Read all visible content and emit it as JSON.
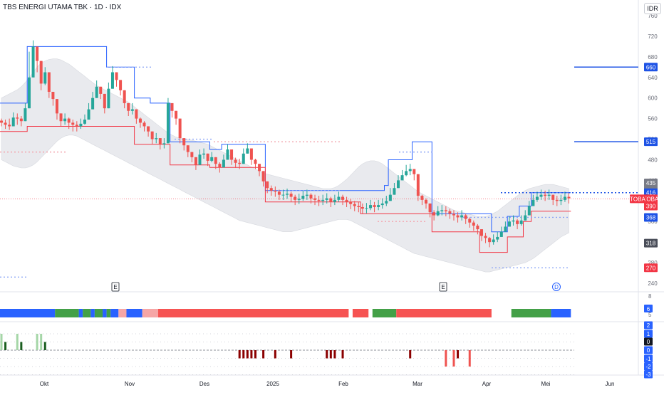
{
  "header": {
    "title": "TBS ENERGI UTAMA TBK · 1D · IDX",
    "currency": "IDR"
  },
  "colors": {
    "up": "#26a69a",
    "down": "#ef5350",
    "upper_band": "#2962ff",
    "lower_band": "#f23645",
    "cloud": "#e9eaee",
    "level_line": "#1e53e5",
    "last_price": "#f23645"
  },
  "chart_data": {
    "type": "candlestick",
    "symbol_tag": "TOBA",
    "price_axis": {
      "min": 240,
      "max": 760,
      "ticks": [
        760,
        720,
        680,
        640,
        600,
        560,
        520,
        480,
        440,
        400,
        360,
        320,
        280,
        240
      ]
    },
    "time_axis": {
      "labels": [
        "Okt",
        "Nov",
        "Des",
        "2025",
        "Feb",
        "Mar",
        "Apr",
        "Mei",
        "Jun"
      ]
    },
    "last_price": 404,
    "price_labels": [
      {
        "value": 660,
        "text": "660",
        "color": "#1e53e5"
      },
      {
        "value": 515,
        "text": "515",
        "color": "#1e53e5"
      },
      {
        "value": 435,
        "text": "435",
        "color": "#787b86"
      },
      {
        "value": 420,
        "text": "420",
        "color": "#787b86"
      },
      {
        "value": 416,
        "text": "416",
        "color": "#1e53e5"
      },
      {
        "value": 404,
        "text": "TOBA",
        "color": "#f23645"
      },
      {
        "value": 390,
        "text": "390",
        "color": "#f23645"
      },
      {
        "value": 368,
        "text": "368",
        "color": "#1e53e5"
      },
      {
        "value": 318,
        "text": "318",
        "color": "#4a4e59"
      },
      {
        "value": 270,
        "text": "270",
        "color": "#f23645"
      }
    ],
    "level_lines": [
      660,
      515
    ],
    "event_markers": [
      {
        "label": "E",
        "x": 162
      },
      {
        "label": "E",
        "x": 622
      },
      {
        "label": "D",
        "x": 781
      }
    ],
    "close": [
      552,
      548,
      545,
      562,
      560,
      555,
      580,
      640,
      700,
      672,
      628,
      650,
      612,
      598,
      570,
      555,
      560,
      552,
      548,
      545,
      550,
      558,
      578,
      600,
      622,
      608,
      580,
      618,
      650,
      635,
      615,
      590,
      575,
      578,
      560,
      552,
      545,
      535,
      520,
      522,
      510,
      512,
      590,
      575,
      560,
      522,
      508,
      495,
      485,
      470,
      490,
      492,
      478,
      485,
      472,
      465,
      480,
      500,
      480,
      474,
      472,
      492,
      502,
      480,
      472,
      458,
      438,
      425,
      420,
      418,
      412,
      412,
      414,
      408,
      402,
      404,
      410,
      412,
      405,
      402,
      400,
      402,
      405,
      398,
      402,
      408,
      402,
      398,
      394,
      390,
      388,
      385,
      386,
      392,
      388,
      392,
      395,
      400,
      412,
      425,
      440,
      450,
      458,
      462,
      452,
      410,
      402,
      395,
      378,
      372,
      380,
      382,
      380,
      375,
      372,
      368,
      372,
      365,
      358,
      352,
      345,
      332,
      328,
      320,
      325,
      330,
      340,
      350,
      360,
      362,
      355,
      362,
      372,
      390,
      402,
      408,
      412,
      410,
      412,
      402,
      400,
      402,
      408,
      405
    ],
    "high": [
      560,
      558,
      560,
      572,
      570,
      565,
      590,
      690,
      712,
      690,
      640,
      660,
      622,
      610,
      585,
      565,
      570,
      562,
      558,
      555,
      560,
      568,
      590,
      612,
      634,
      618,
      592,
      630,
      662,
      645,
      625,
      600,
      588,
      590,
      570,
      562,
      555,
      545,
      530,
      532,
      520,
      522,
      600,
      585,
      570,
      532,
      518,
      505,
      495,
      482,
      500,
      502,
      488,
      495,
      482,
      475,
      490,
      510,
      490,
      484,
      482,
      502,
      512,
      490,
      482,
      468,
      448,
      435,
      430,
      428,
      422,
      422,
      424,
      418,
      412,
      414,
      420,
      422,
      415,
      412,
      410,
      412,
      415,
      408,
      412,
      418,
      412,
      408,
      404,
      400,
      398,
      395,
      396,
      402,
      398,
      402,
      405,
      410,
      425,
      435,
      450,
      460,
      470,
      472,
      462,
      420,
      412,
      405,
      388,
      382,
      390,
      392,
      390,
      385,
      382,
      378,
      382,
      375,
      368,
      362,
      355,
      342,
      338,
      330,
      335,
      340,
      350,
      360,
      370,
      372,
      365,
      372,
      382,
      400,
      412,
      418,
      422,
      420,
      422,
      412,
      410,
      412,
      418,
      415
    ],
    "low": [
      545,
      540,
      538,
      550,
      548,
      545,
      570,
      630,
      660,
      650,
      615,
      625,
      600,
      585,
      558,
      545,
      548,
      540,
      535,
      535,
      540,
      548,
      568,
      590,
      610,
      598,
      570,
      605,
      638,
      622,
      605,
      580,
      565,
      568,
      550,
      542,
      535,
      525,
      510,
      512,
      500,
      502,
      575,
      562,
      548,
      512,
      498,
      485,
      475,
      460,
      480,
      482,
      468,
      475,
      462,
      455,
      470,
      490,
      470,
      464,
      462,
      482,
      492,
      470,
      462,
      448,
      428,
      415,
      410,
      408,
      402,
      402,
      404,
      398,
      392,
      394,
      400,
      402,
      395,
      392,
      390,
      392,
      395,
      388,
      392,
      398,
      392,
      388,
      384,
      380,
      378,
      375,
      376,
      382,
      378,
      382,
      385,
      390,
      400,
      415,
      430,
      440,
      448,
      450,
      440,
      400,
      392,
      385,
      368,
      362,
      370,
      372,
      370,
      365,
      362,
      358,
      362,
      355,
      348,
      342,
      335,
      322,
      318,
      310,
      315,
      320,
      330,
      340,
      350,
      352,
      345,
      352,
      362,
      380,
      392,
      398,
      402,
      400,
      402,
      392,
      390,
      392,
      398,
      395
    ],
    "upper_band": [
      590,
      590,
      590,
      590,
      590,
      590,
      590,
      700,
      700,
      700,
      700,
      700,
      700,
      700,
      700,
      700,
      700,
      700,
      700,
      700,
      700,
      700,
      700,
      700,
      700,
      700,
      700,
      660,
      660,
      660,
      660,
      660,
      660,
      660,
      600,
      600,
      600,
      600,
      590,
      590,
      590,
      590,
      590,
      515,
      515,
      515,
      515,
      515,
      515,
      515,
      515,
      515,
      515,
      500,
      500,
      500,
      510,
      510,
      510,
      510,
      510,
      510,
      510,
      510,
      510,
      510,
      510,
      420,
      420,
      420,
      420,
      420,
      420,
      420,
      420,
      420,
      420,
      420,
      420,
      420,
      420,
      420,
      420,
      420,
      420,
      420,
      420,
      420,
      420,
      420,
      420,
      420,
      420,
      420,
      420,
      420,
      420,
      430,
      480,
      480,
      480,
      480,
      480,
      480,
      515,
      515,
      515,
      515,
      515,
      375,
      375,
      375,
      375,
      375,
      375,
      375,
      375,
      375,
      375,
      375,
      375,
      375,
      375,
      375,
      340,
      340,
      340,
      340,
      370,
      370,
      370,
      390,
      390,
      390,
      416,
      416,
      416,
      416,
      416,
      416,
      416,
      416,
      416,
      416
    ],
    "lower_band": [
      535,
      535,
      535,
      535,
      535,
      535,
      535,
      545,
      545,
      545,
      545,
      545,
      545,
      545,
      545,
      545,
      545,
      545,
      545,
      545,
      545,
      545,
      545,
      545,
      545,
      545,
      545,
      545,
      545,
      545,
      545,
      545,
      545,
      545,
      510,
      510,
      510,
      510,
      510,
      510,
      510,
      510,
      510,
      470,
      470,
      470,
      470,
      470,
      470,
      470,
      470,
      470,
      470,
      465,
      465,
      465,
      465,
      465,
      465,
      465,
      465,
      465,
      465,
      465,
      465,
      465,
      465,
      398,
      398,
      398,
      398,
      398,
      398,
      398,
      398,
      398,
      398,
      398,
      398,
      398,
      398,
      398,
      398,
      398,
      398,
      398,
      398,
      398,
      398,
      398,
      398,
      375,
      375,
      375,
      375,
      375,
      375,
      375,
      375,
      375,
      375,
      375,
      375,
      375,
      375,
      375,
      375,
      375,
      375,
      340,
      340,
      340,
      340,
      340,
      340,
      340,
      340,
      340,
      340,
      340,
      340,
      300,
      300,
      300,
      300,
      300,
      300,
      300,
      330,
      330,
      330,
      330,
      360,
      360,
      380,
      380,
      380,
      380,
      380,
      380,
      380,
      380,
      380,
      380
    ],
    "cloud_upper": [
      600,
      604,
      608,
      612,
      616,
      622,
      630,
      640,
      650,
      660,
      668,
      672,
      675,
      676,
      676,
      674,
      670,
      666,
      660,
      654,
      648,
      642,
      636,
      630,
      624,
      620,
      616,
      612,
      608,
      604,
      600,
      596,
      592,
      586,
      580,
      574,
      568,
      562,
      556,
      550,
      544,
      538,
      532,
      528,
      524,
      522,
      520,
      520,
      518,
      516,
      514,
      512,
      510,
      506,
      502,
      498,
      494,
      490,
      486,
      482,
      478,
      474,
      470,
      466,
      462,
      458,
      454,
      452,
      450,
      448,
      446,
      444,
      442,
      440,
      438,
      436,
      434,
      432,
      430,
      428,
      426,
      424,
      424,
      424,
      426,
      430,
      436,
      442,
      450,
      458,
      466,
      472,
      476,
      478,
      478,
      476,
      472,
      466,
      460,
      454,
      448,
      442,
      436,
      430,
      424,
      418,
      414,
      410,
      406,
      402,
      398,
      394,
      390,
      386,
      382,
      380,
      378,
      376,
      374,
      372,
      370,
      370,
      370,
      372,
      376,
      380,
      386,
      392,
      398,
      404,
      410,
      416,
      420,
      424,
      426,
      428,
      430,
      432,
      432,
      432,
      430,
      428,
      426,
      424
    ],
    "cloud_lower": [
      480,
      476,
      472,
      468,
      466,
      464,
      464,
      466,
      470,
      476,
      484,
      492,
      500,
      508,
      516,
      522,
      526,
      528,
      528,
      526,
      522,
      518,
      514,
      510,
      506,
      502,
      498,
      494,
      490,
      486,
      482,
      478,
      474,
      470,
      466,
      462,
      458,
      454,
      450,
      446,
      442,
      438,
      434,
      430,
      426,
      422,
      418,
      414,
      410,
      406,
      402,
      398,
      394,
      390,
      386,
      382,
      378,
      374,
      370,
      366,
      362,
      360,
      358,
      356,
      354,
      352,
      350,
      348,
      346,
      344,
      342,
      340,
      340,
      340,
      342,
      344,
      346,
      348,
      350,
      352,
      354,
      356,
      358,
      360,
      362,
      364,
      364,
      364,
      362,
      358,
      354,
      350,
      346,
      342,
      338,
      334,
      330,
      326,
      322,
      318,
      314,
      310,
      306,
      302,
      298,
      296,
      294,
      292,
      290,
      288,
      286,
      284,
      282,
      280,
      278,
      276,
      274,
      272,
      270,
      268,
      266,
      264,
      262,
      262,
      264,
      266,
      268,
      270,
      272,
      274,
      276,
      278,
      280,
      284,
      288,
      294,
      300,
      306,
      312,
      318,
      324,
      330,
      334,
      338
    ],
    "regime": {
      "scale": {
        "min": -3,
        "max": 8,
        "ticks": [
          8,
          6,
          5
        ]
      },
      "badge": "6",
      "segments": [
        {
          "from": 0,
          "to": 14,
          "state": "blue"
        },
        {
          "from": 14,
          "to": 20,
          "state": "green"
        },
        {
          "from": 20,
          "to": 21,
          "state": "blue"
        },
        {
          "from": 21,
          "to": 23,
          "state": "green"
        },
        {
          "from": 23,
          "to": 24,
          "state": "blue"
        },
        {
          "from": 24,
          "to": 26,
          "state": "green"
        },
        {
          "from": 26,
          "to": 27,
          "state": "blue"
        },
        {
          "from": 27,
          "to": 28,
          "state": "green"
        },
        {
          "from": 28,
          "to": 30,
          "state": "blue"
        },
        {
          "from": 30,
          "to": 32,
          "state": "pink"
        },
        {
          "from": 32,
          "to": 36,
          "state": "blue"
        },
        {
          "from": 36,
          "to": 40,
          "state": "pink"
        },
        {
          "from": 40,
          "to": 88,
          "state": "red"
        },
        {
          "from": 89,
          "to": 93,
          "state": "red"
        },
        {
          "from": 94,
          "to": 100,
          "state": "green"
        },
        {
          "from": 100,
          "to": 124,
          "state": "red"
        },
        {
          "from": 129,
          "to": 139,
          "state": "green"
        },
        {
          "from": 139,
          "to": 144,
          "state": "blue"
        }
      ]
    },
    "oscillator": {
      "scale": {
        "min": -3,
        "max": 3
      },
      "ticks": [
        "2",
        "1",
        "0",
        "0",
        "-1",
        "-2",
        "-3"
      ],
      "highlight": "0",
      "bars": [
        {
          "i": 0,
          "v": 2
        },
        {
          "i": 1,
          "v": 1
        },
        {
          "i": 4,
          "v": 2
        },
        {
          "i": 5,
          "v": 1
        },
        {
          "i": 9,
          "v": 2
        },
        {
          "i": 10,
          "v": 2
        },
        {
          "i": 11,
          "v": 1
        },
        {
          "i": 60,
          "v": -1
        },
        {
          "i": 61,
          "v": -1
        },
        {
          "i": 62,
          "v": -1
        },
        {
          "i": 63,
          "v": -1
        },
        {
          "i": 64,
          "v": -1
        },
        {
          "i": 66,
          "v": -1
        },
        {
          "i": 69,
          "v": -1
        },
        {
          "i": 73,
          "v": -1
        },
        {
          "i": 82,
          "v": -1
        },
        {
          "i": 83,
          "v": -1
        },
        {
          "i": 84,
          "v": -1
        },
        {
          "i": 86,
          "v": -1
        },
        {
          "i": 103,
          "v": -1
        },
        {
          "i": 112,
          "v": -2
        },
        {
          "i": 114,
          "v": -2
        },
        {
          "i": 115,
          "v": -1
        },
        {
          "i": 118,
          "v": -2
        }
      ]
    }
  }
}
